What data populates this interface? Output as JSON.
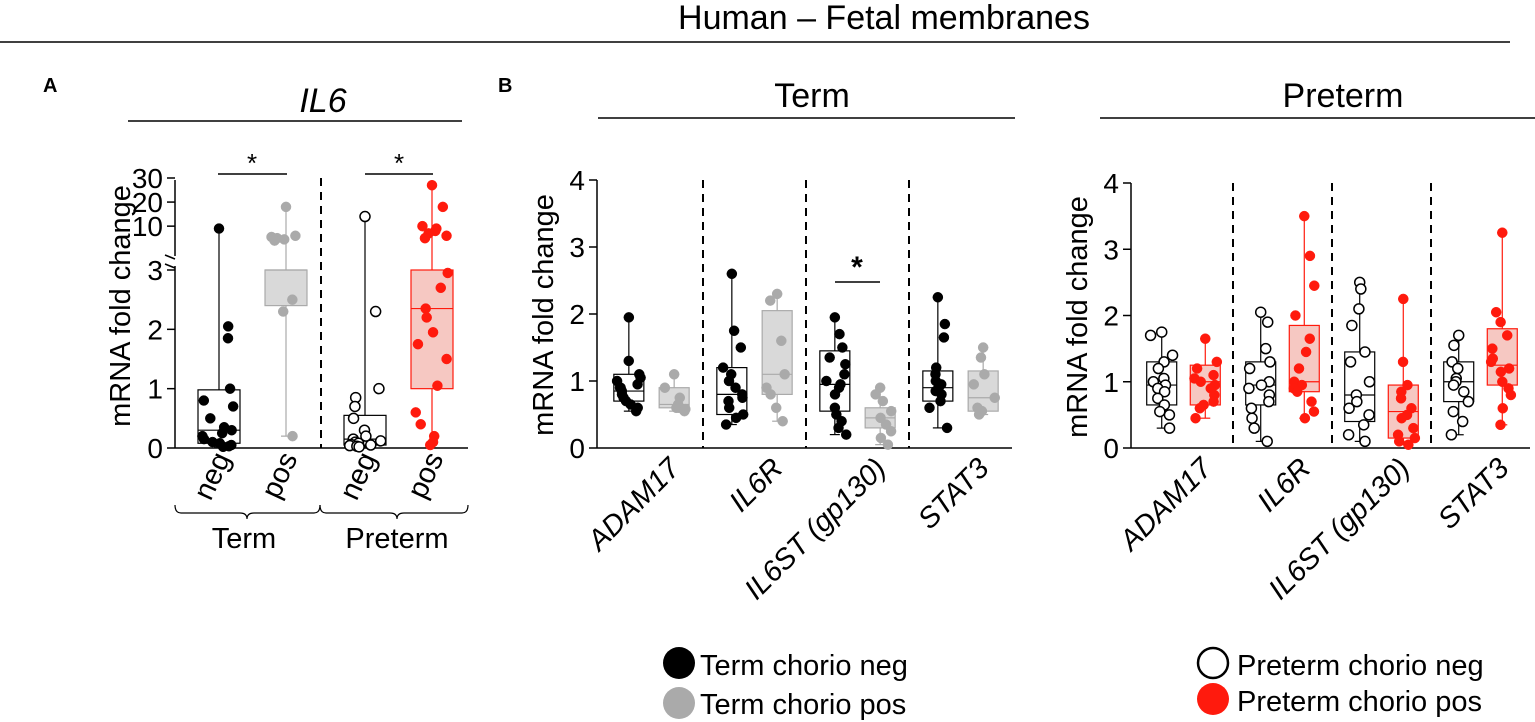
{
  "header": {
    "title": "Human – Fetal membranes"
  },
  "colors": {
    "term_neg": "#000000",
    "term_pos": "#aaaaaa",
    "term_pos_box": "#d9d9d9",
    "preterm_neg_fill": "#ffffff",
    "preterm_pos": "#ff1a0d",
    "preterm_pos_box": "#f6c8c2"
  },
  "panel_a": {
    "label": "A",
    "title": "IL6",
    "ylabel": "mRNA fold change",
    "sig_marker": "*",
    "xticks": [
      "neg",
      "pos",
      "neg",
      "pos"
    ],
    "groups": [
      "Term",
      "Preterm"
    ]
  },
  "panel_b": {
    "label": "B",
    "term_title": "Term",
    "preterm_title": "Preterm",
    "sig_marker": "*"
  },
  "legend": [
    {
      "label": "Term chorio neg"
    },
    {
      "label": "Term chorio pos"
    },
    {
      "label": "Preterm chorio neg"
    },
    {
      "label": "Preterm chorio pos"
    }
  ],
  "chart_data": [
    {
      "type": "box",
      "title": "IL6",
      "ylabel": "mRNA fold change",
      "y_axis": {
        "type": "broken",
        "lower_range": [
          0,
          3
        ],
        "upper_range": [
          3,
          30
        ],
        "lower_ticks": [
          "0",
          "1",
          "2",
          "3"
        ],
        "upper_ticks": [
          "10",
          "20",
          "30"
        ]
      },
      "categories": [
        "neg",
        "pos",
        "neg",
        "pos"
      ],
      "groups": [
        "Term",
        "Preterm"
      ],
      "significance": [
        {
          "between": [
            "Term neg",
            "Term pos"
          ],
          "label": "*"
        },
        {
          "between": [
            "Preterm neg",
            "Preterm pos"
          ],
          "label": "*"
        }
      ],
      "series": [
        {
          "name": "Term chorio neg",
          "style": "neg_term",
          "box": {
            "min": 0.02,
            "q1": 0.08,
            "median": 0.3,
            "q3": 0.98,
            "max": 9
          },
          "points": [
            9,
            2.05,
            1.85,
            1.0,
            0.8,
            0.7,
            0.5,
            0.35,
            0.3,
            0.25,
            0.2,
            0.15,
            0.1,
            0.08,
            0.05,
            0.03,
            0.02
          ]
        },
        {
          "name": "Term chorio pos",
          "style": "pos_term",
          "box": {
            "min": 0.2,
            "q1": 2.4,
            "median": 3,
            "q3": 3,
            "max": 18
          },
          "points": [
            18,
            6,
            5.5,
            5,
            4.5,
            4,
            2.5,
            2.3,
            0.2
          ]
        },
        {
          "name": "Preterm chorio neg",
          "style": "neg_pre",
          "box": {
            "min": 0.02,
            "q1": 0.05,
            "median": 0.15,
            "q3": 0.55,
            "max": 14
          },
          "points": [
            14,
            2.3,
            1.0,
            0.85,
            0.7,
            0.5,
            0.3,
            0.2,
            0.15,
            0.12,
            0.1,
            0.08,
            0.06,
            0.05,
            0.04,
            0.03,
            0.02
          ]
        },
        {
          "name": "Preterm chorio pos",
          "style": "pos_pre",
          "box": {
            "min": 0.05,
            "q1": 1.0,
            "median": 2.35,
            "q3": 3,
            "max": 27
          },
          "points": [
            27,
            18,
            10,
            9,
            8,
            7,
            6,
            5,
            2.95,
            2.7,
            2.35,
            2.2,
            1.95,
            1.75,
            1.5,
            1.05,
            0.6,
            0.4,
            0.2,
            0.1,
            0.05
          ]
        }
      ]
    },
    {
      "type": "box",
      "title": "Term",
      "ylabel": "mRNA fold change",
      "ylim": [
        0,
        4
      ],
      "yticks": [
        "0",
        "1",
        "2",
        "3",
        "4"
      ],
      "categories": [
        "ADAM17",
        "IL6R",
        "IL6ST (gp130)",
        "STAT3"
      ],
      "significance": [
        {
          "gene": "IL6ST (gp130)",
          "label": "*"
        }
      ],
      "series": [
        {
          "name": "Term chorio neg",
          "style": "neg_term",
          "boxes": [
            {
              "min": 0.55,
              "q1": 0.7,
              "median": 0.85,
              "q3": 1.1,
              "max": 1.95,
              "points": [
                1.95,
                1.3,
                1.1,
                1.05,
                1.0,
                0.95,
                0.9,
                0.9,
                0.85,
                0.8,
                0.75,
                0.7,
                0.65,
                0.6,
                0.55
              ]
            },
            {
              "min": 0.35,
              "q1": 0.5,
              "median": 0.8,
              "q3": 1.2,
              "max": 2.6,
              "points": [
                2.6,
                1.75,
                1.5,
                1.2,
                1.1,
                1.0,
                0.9,
                0.8,
                0.75,
                0.7,
                0.6,
                0.5,
                0.45,
                0.35
              ]
            },
            {
              "min": 0.2,
              "q1": 0.55,
              "median": 0.95,
              "q3": 1.45,
              "max": 1.95,
              "points": [
                1.95,
                1.7,
                1.5,
                1.35,
                1.25,
                1.1,
                1.0,
                0.95,
                0.9,
                0.8,
                0.6,
                0.5,
                0.4,
                0.3,
                0.2
              ]
            },
            {
              "min": 0.3,
              "q1": 0.7,
              "median": 0.9,
              "q3": 1.15,
              "max": 2.25,
              "points": [
                2.25,
                1.85,
                1.65,
                1.2,
                1.1,
                1.0,
                0.95,
                0.9,
                0.85,
                0.8,
                0.7,
                0.6,
                0.3
              ]
            }
          ]
        },
        {
          "name": "Term chorio pos",
          "style": "pos_term",
          "boxes": [
            {
              "min": 0.55,
              "q1": 0.6,
              "median": 0.65,
              "q3": 0.9,
              "max": 1.1,
              "points": [
                1.1,
                0.9,
                0.75,
                0.65,
                0.6,
                0.6,
                0.58,
                0.55
              ]
            },
            {
              "min": 0.4,
              "q1": 0.8,
              "median": 1.1,
              "q3": 2.05,
              "max": 2.3,
              "points": [
                2.3,
                2.2,
                1.6,
                1.1,
                0.9,
                0.8,
                0.6,
                0.4
              ]
            },
            {
              "min": 0.05,
              "q1": 0.3,
              "median": 0.45,
              "q3": 0.6,
              "max": 0.9,
              "points": [
                0.9,
                0.8,
                0.7,
                0.55,
                0.45,
                0.35,
                0.25,
                0.15,
                0.05
              ]
            },
            {
              "min": 0.5,
              "q1": 0.55,
              "median": 0.75,
              "q3": 1.15,
              "max": 1.5,
              "points": [
                1.5,
                1.35,
                1.1,
                0.95,
                0.75,
                0.6,
                0.55,
                0.5
              ]
            }
          ]
        }
      ]
    },
    {
      "type": "box",
      "title": "Preterm",
      "ylabel": "mRNA fold change",
      "ylim": [
        0,
        4
      ],
      "yticks": [
        "0",
        "1",
        "2",
        "3",
        "4"
      ],
      "categories": [
        "ADAM17",
        "IL6R",
        "IL6ST (gp130)",
        "STAT3"
      ],
      "series": [
        {
          "name": "Preterm chorio neg",
          "style": "neg_pre",
          "boxes": [
            {
              "min": 0.3,
              "q1": 0.65,
              "median": 0.95,
              "q3": 1.3,
              "max": 1.75,
              "points": [
                1.75,
                1.7,
                1.4,
                1.3,
                1.2,
                1.05,
                1.0,
                0.95,
                0.9,
                0.85,
                0.75,
                0.65,
                0.55,
                0.5,
                0.3
              ]
            },
            {
              "min": 0.1,
              "q1": 0.65,
              "median": 0.95,
              "q3": 1.3,
              "max": 2.05,
              "points": [
                2.05,
                1.9,
                1.5,
                1.3,
                1.2,
                1.0,
                0.95,
                0.9,
                0.8,
                0.7,
                0.6,
                0.45,
                0.3,
                0.1
              ]
            },
            {
              "min": 0.1,
              "q1": 0.4,
              "median": 0.8,
              "q3": 1.45,
              "max": 2.5,
              "points": [
                2.5,
                2.4,
                2.1,
                1.85,
                1.45,
                1.3,
                1.0,
                0.8,
                0.7,
                0.6,
                0.5,
                0.35,
                0.2,
                0.1
              ]
            },
            {
              "min": 0.2,
              "q1": 0.7,
              "median": 1.0,
              "q3": 1.3,
              "max": 1.7,
              "points": [
                1.7,
                1.55,
                1.3,
                1.2,
                1.05,
                1.0,
                0.95,
                0.85,
                0.7,
                0.55,
                0.4,
                0.2
              ]
            }
          ]
        },
        {
          "name": "Preterm chorio pos",
          "style": "pos_pre",
          "boxes": [
            {
              "min": 0.45,
              "q1": 0.65,
              "median": 1.0,
              "q3": 1.25,
              "max": 1.65,
              "points": [
                1.65,
                1.3,
                1.2,
                1.1,
                1.05,
                1.0,
                0.95,
                0.9,
                0.8,
                0.7,
                0.65,
                0.6,
                0.45
              ]
            },
            {
              "min": 0.45,
              "q1": 0.85,
              "median": 1.0,
              "q3": 1.85,
              "max": 3.5,
              "points": [
                3.5,
                2.9,
                2.45,
                2.0,
                1.65,
                1.45,
                1.2,
                1.0,
                0.95,
                0.9,
                0.85,
                0.7,
                0.55,
                0.45
              ]
            },
            {
              "min": 0.05,
              "q1": 0.15,
              "median": 0.55,
              "q3": 0.95,
              "max": 2.25,
              "points": [
                2.25,
                1.3,
                0.95,
                0.85,
                0.75,
                0.6,
                0.5,
                0.45,
                0.3,
                0.2,
                0.15,
                0.1,
                0.05
              ]
            },
            {
              "min": 0.35,
              "q1": 0.95,
              "median": 1.25,
              "q3": 1.8,
              "max": 3.25,
              "points": [
                3.25,
                2.05,
                1.9,
                1.7,
                1.5,
                1.35,
                1.3,
                1.2,
                1.15,
                1.0,
                0.9,
                0.8,
                0.6,
                0.35
              ]
            }
          ]
        }
      ]
    }
  ]
}
